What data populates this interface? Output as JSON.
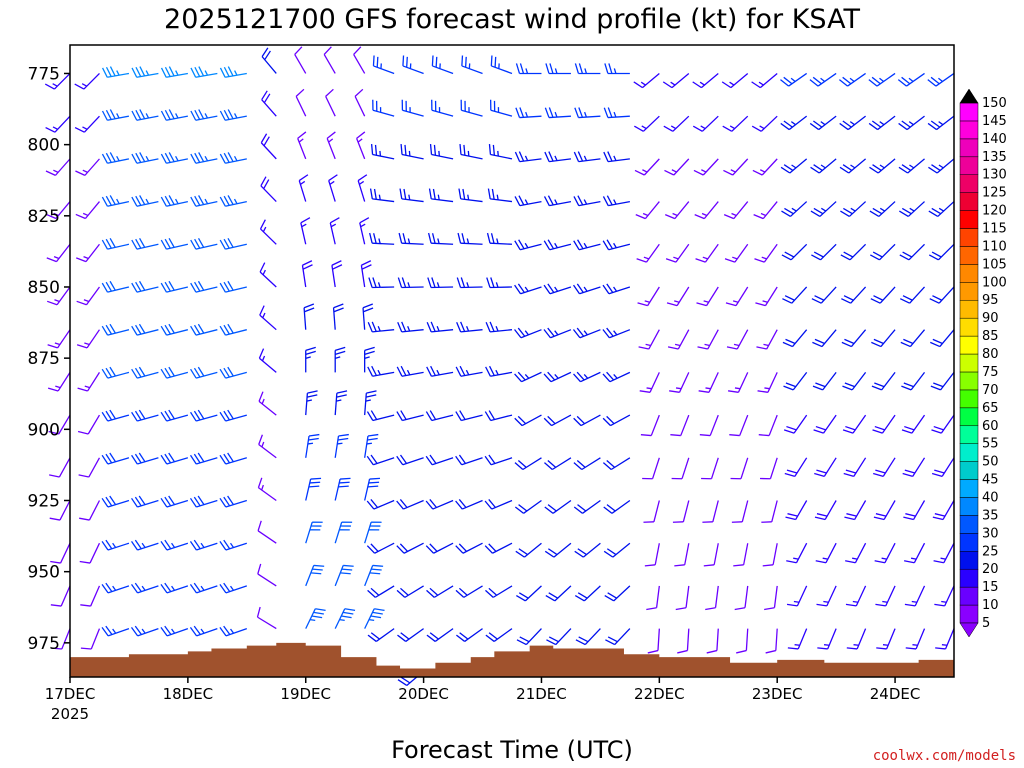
{
  "chart_data": {
    "type": "wind-barb-time-height",
    "title": "2025121700 GFS forecast wind profile (kt) for KSAT",
    "xlabel": "Forecast Time (UTC)",
    "credit": "coolwx.com/models",
    "units": "kt",
    "x_start_year": "2025",
    "x_ticks": [
      "17DEC",
      "18DEC",
      "19DEC",
      "20DEC",
      "21DEC",
      "22DEC",
      "23DEC",
      "24DEC"
    ],
    "x_range_days": [
      0,
      7.5
    ],
    "y_ticks": [
      775,
      800,
      825,
      850,
      875,
      900,
      925,
      950,
      975
    ],
    "y_range_hpa": [
      765,
      987
    ],
    "levels_hpa": [
      775,
      790,
      805,
      820,
      835,
      850,
      865,
      880,
      895,
      910,
      925,
      940,
      955,
      970,
      985
    ],
    "time_step_hours": 6,
    "colorbar": {
      "min": 5,
      "max": 150,
      "step": 5,
      "labels": [
        5,
        10,
        15,
        20,
        25,
        30,
        35,
        40,
        45,
        50,
        55,
        60,
        65,
        70,
        75,
        80,
        85,
        90,
        95,
        100,
        105,
        110,
        115,
        120,
        125,
        130,
        135,
        140,
        145,
        150
      ],
      "colors": [
        "#8a00ff",
        "#6a00ff",
        "#2a00ff",
        "#0010ee",
        "#0035ff",
        "#0058ff",
        "#0088ff",
        "#00aaff",
        "#00cccc",
        "#00eecc",
        "#00ff99",
        "#00ff44",
        "#44ff00",
        "#88ff00",
        "#ccff00",
        "#ffff00",
        "#ffdd00",
        "#ffbb00",
        "#ff9900",
        "#ff8800",
        "#ff6600",
        "#ff4400",
        "#ff0000",
        "#ee0033",
        "#ee0066",
        "#ee0099",
        "#ee00bb",
        "#ff00dd",
        "#ff00ff",
        "#000000"
      ]
    },
    "terrain_surface_hpa": [
      [
        0,
        980
      ],
      [
        0.5,
        979
      ],
      [
        1.0,
        978
      ],
      [
        1.2,
        977
      ],
      [
        1.5,
        976
      ],
      [
        1.75,
        975
      ],
      [
        2.0,
        976
      ],
      [
        2.3,
        980
      ],
      [
        2.6,
        983
      ],
      [
        2.8,
        984
      ],
      [
        3.1,
        982
      ],
      [
        3.4,
        980
      ],
      [
        3.6,
        978
      ],
      [
        3.9,
        976
      ],
      [
        4.1,
        977
      ],
      [
        4.4,
        977
      ],
      [
        4.7,
        979
      ],
      [
        5.0,
        980
      ],
      [
        5.3,
        980
      ],
      [
        5.6,
        982
      ],
      [
        6.0,
        981
      ],
      [
        6.4,
        982
      ],
      [
        6.8,
        982
      ],
      [
        7.2,
        981
      ],
      [
        7.5,
        981
      ]
    ],
    "regimes": [
      {
        "from_day": 0.0,
        "to_day": 0.5,
        "upper_dir": 225,
        "upper_spd": 15,
        "lower_dir": 200,
        "lower_spd": 10
      },
      {
        "from_day": 0.5,
        "to_day": 1.7,
        "upper_dir": 260,
        "upper_spd": 35,
        "lower_dir": 250,
        "lower_spd": 25
      },
      {
        "from_day": 1.7,
        "to_day": 2.0,
        "upper_dir": 320,
        "upper_spd": 20,
        "lower_dir": 300,
        "lower_spd": 10
      },
      {
        "from_day": 2.0,
        "to_day": 2.7,
        "upper_dir": 330,
        "upper_spd": 10,
        "lower_dir": 30,
        "lower_spd": 35
      },
      {
        "from_day": 2.7,
        "to_day": 4.0,
        "upper_dir": 290,
        "upper_spd": 25,
        "lower_dir": 230,
        "lower_spd": 20
      },
      {
        "from_day": 4.0,
        "to_day": 5.0,
        "upper_dir": 270,
        "upper_spd": 25,
        "lower_dir": 220,
        "lower_spd": 20
      },
      {
        "from_day": 5.0,
        "to_day": 6.2,
        "upper_dir": 230,
        "upper_spd": 15,
        "lower_dir": 180,
        "lower_spd": 10
      },
      {
        "from_day": 6.2,
        "to_day": 7.5,
        "upper_dir": 235,
        "upper_spd": 25,
        "lower_dir": 200,
        "lower_spd": 15
      }
    ]
  }
}
